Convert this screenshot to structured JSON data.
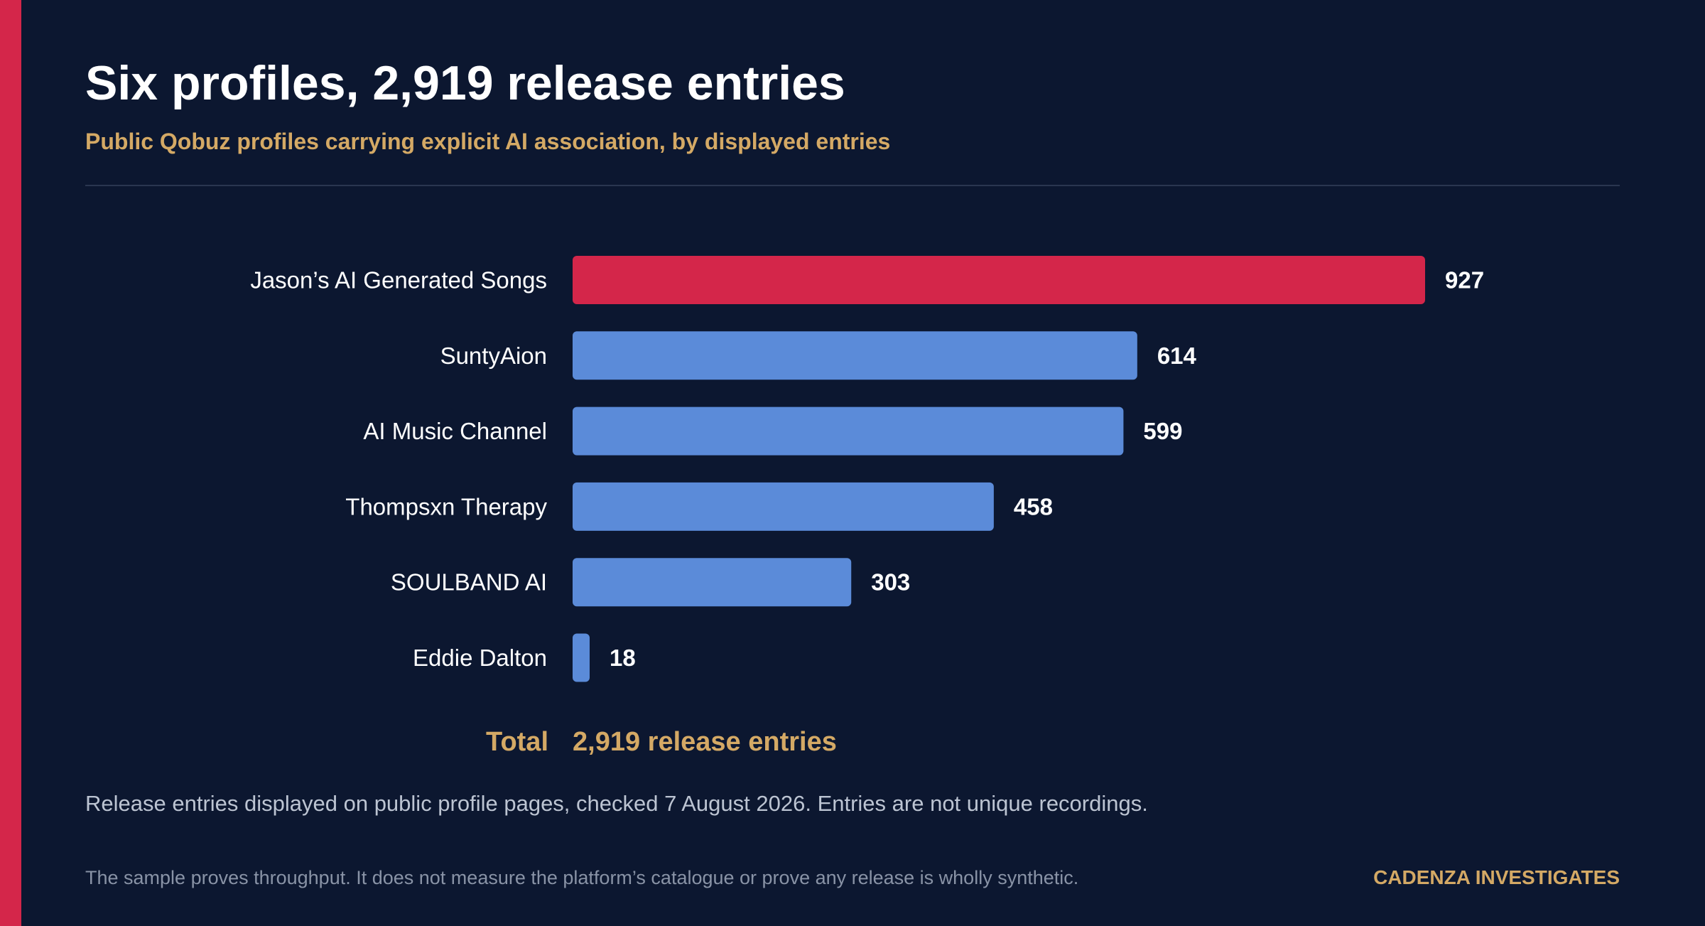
{
  "header": {
    "title": "Six profiles, 2,919 release entries",
    "subtitle": "Public Qobuz profiles carrying explicit AI association, by displayed entries"
  },
  "chart_data": {
    "type": "bar",
    "orientation": "horizontal",
    "categories": [
      "Jason’s AI Generated Songs",
      "SuntyAion",
      "AI Music Channel",
      "Thompsxn Therapy",
      "SOULBAND AI",
      "Eddie Dalton"
    ],
    "values": [
      927,
      614,
      599,
      458,
      303,
      18
    ],
    "title": "Six profiles, 2,919 release entries",
    "subtitle": "Public Qobuz profiles carrying explicit AI association, by displayed entries",
    "highlight_index": 0,
    "grid": false,
    "legend": "none"
  },
  "total": {
    "label": "Total",
    "value": "2,919 release entries"
  },
  "note": "Release entries displayed on public profile pages, checked 7 August 2026. Entries are not unique recordings.",
  "footnote": "The sample proves throughput. It does not measure the platform’s catalogue or prove any release is wholly synthetic.",
  "brand": "CADENZA INVESTIGATES",
  "colors": {
    "background": "#0c1730",
    "accent": "#d4264a",
    "highlight_bar": "#d4264a",
    "bar": "#5b8bd9",
    "gold": "#d4a965",
    "text": "#ffffff",
    "muted_text": "#bcc4d2"
  }
}
